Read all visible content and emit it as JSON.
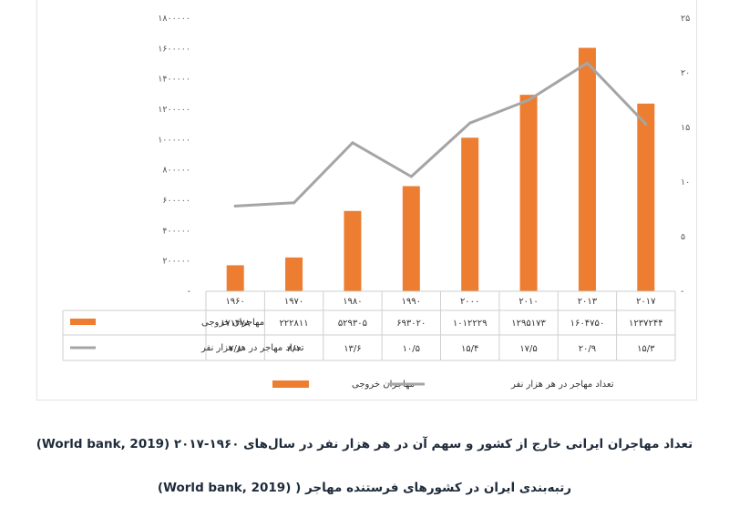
{
  "chart_data": {
    "type": "bar+line",
    "categories": [
      "۱۹۶۰",
      "۱۹۷۰",
      "۱۹۸۰",
      "۱۹۹۰",
      "۲۰۰۰",
      "۲۰۱۰",
      "۲۰۱۳",
      "۲۰۱۷"
    ],
    "bar_series": {
      "name": "مهاجران خروجی",
      "color": "#ED7D31",
      "values": [
        171478,
        222811,
        529305,
        693020,
        1012229,
        1295173,
        1604750,
        1237244
      ],
      "table_labels": [
        "۱۷۱۴۷۸",
        "۲۲۲۸۱۱",
        "۵۲۹۳۰۵",
        "۶۹۳۰۲۰",
        "۱۰۱۲۲۲۹",
        "۱۲۹۵۱۷۳",
        "۱۶۰۴۷۵۰",
        "۱۲۳۷۲۴۴"
      ]
    },
    "line_series": {
      "name": "تعداد مهاجر در هر هزار نفر",
      "color": "#A5A5A5",
      "values": [
        7.8,
        8.1,
        13.6,
        10.5,
        15.4,
        17.5,
        20.9,
        15.3
      ],
      "table_labels": [
        "۷/۸",
        "۸/۱",
        "۱۳/۶",
        "۱۰/۵",
        "۱۵/۴",
        "۱۷/۵",
        "۲۰/۹",
        "۱۵/۳"
      ]
    },
    "y_left": {
      "min": 0,
      "max": 1800000,
      "ticks": [
        0,
        200000,
        400000,
        600000,
        800000,
        1000000,
        1200000,
        1400000,
        1600000,
        1800000
      ],
      "tick_labels": [
        "-",
        "۲۰۰۰۰۰",
        "۴۰۰۰۰۰",
        "۶۰۰۰۰۰",
        "۸۰۰۰۰۰",
        "۱۰۰۰۰۰۰",
        "۱۲۰۰۰۰۰",
        "۱۴۰۰۰۰۰",
        "۱۶۰۰۰۰۰",
        "۱۸۰۰۰۰۰"
      ]
    },
    "y_right": {
      "min": 0,
      "max": 25,
      "ticks": [
        0,
        5,
        10,
        15,
        20,
        25
      ],
      "tick_labels": [
        "-",
        "۵",
        "۱۰",
        "۱۵",
        "۲۰",
        "۲۵"
      ]
    },
    "grid": false,
    "legend_position": "bottom",
    "data_table": true
  },
  "captions": {
    "line1": "تعداد مهاجران ایرانی خارج از کشور و سهم آن در هر هزار نفر در سال‌های ۱۹۶۰-۲۰۱۷ (World bank, 2019)",
    "line2": "رتبه‌بندی ایران در کشورهای فرستنده مهاجر ( (World bank, 2019)"
  }
}
